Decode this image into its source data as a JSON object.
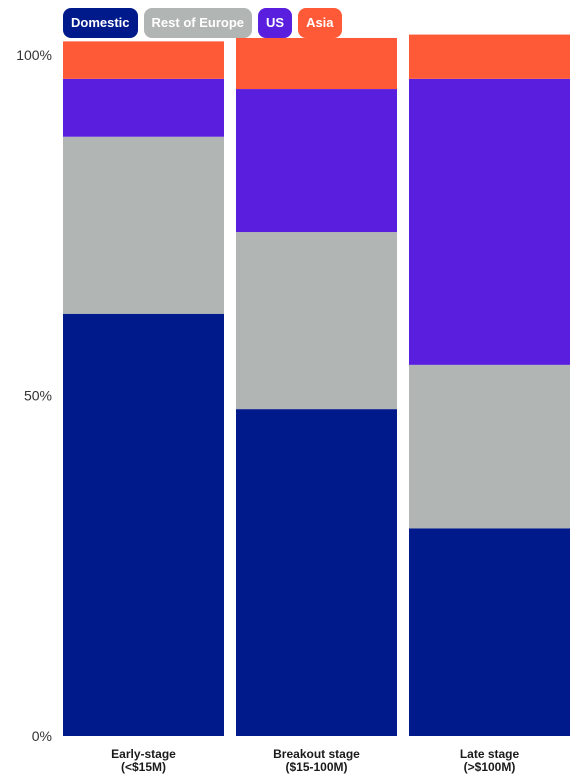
{
  "legend": [
    {
      "label": "Domestic",
      "color": "#001A8C"
    },
    {
      "label": "Rest of Europe",
      "color": "#B1B5B4"
    },
    {
      "label": "US",
      "color": "#5A1EDF"
    },
    {
      "label": "Asia",
      "color": "#FF5A38"
    }
  ],
  "chart_data": {
    "type": "bar",
    "stacked": true,
    "categories": [
      [
        "Early-stage",
        "(<$15M)"
      ],
      [
        "Breakout stage",
        "($15-100M)"
      ],
      [
        "Late stage",
        "(>$100M)"
      ]
    ],
    "series": [
      {
        "name": "Domestic",
        "color": "#001A8C",
        "values": [
          62,
          48,
          30.5
        ]
      },
      {
        "name": "Rest of Europe",
        "color": "#B1B5B4",
        "values": [
          26,
          26,
          24
        ]
      },
      {
        "name": "US",
        "color": "#5A1EDF",
        "values": [
          8.5,
          21,
          42
        ]
      },
      {
        "name": "Asia",
        "color": "#FF5A38",
        "values": [
          5.5,
          7.5,
          6.5
        ]
      }
    ],
    "yticks": [
      {
        "value": 0,
        "label": "0%"
      },
      {
        "value": 50,
        "label": "50%"
      },
      {
        "value": 100,
        "label": "100%"
      }
    ],
    "ylim": [
      0,
      100
    ],
    "grid": false,
    "legend_position": "top-left",
    "title": "",
    "xlabel": "",
    "ylabel": ""
  }
}
